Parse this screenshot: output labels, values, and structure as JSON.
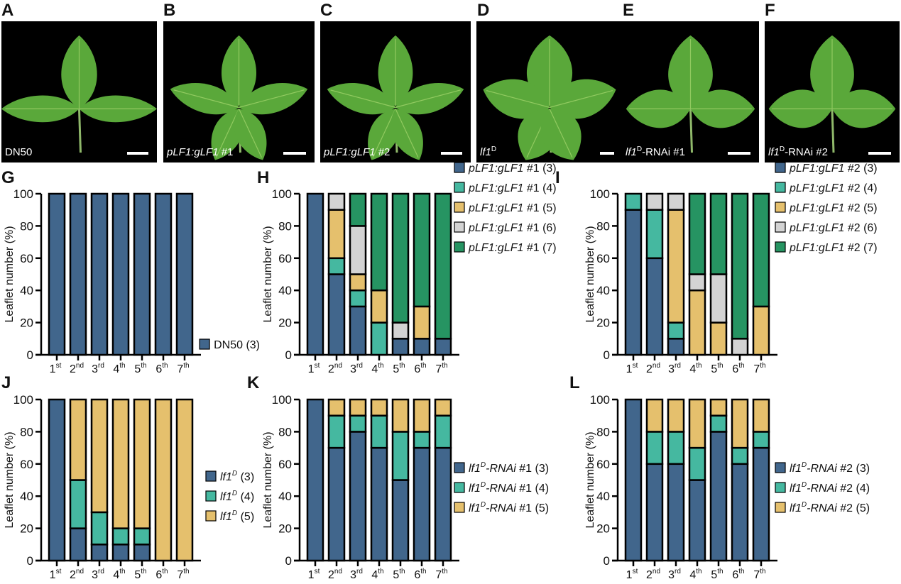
{
  "figure": {
    "photo_panels": [
      {
        "label": "A",
        "caption_main": "DN50",
        "caption_italic": "",
        "caption_sup": "",
        "caption_suffix": "",
        "leaflets": 3
      },
      {
        "label": "B",
        "caption_main": "",
        "caption_italic": "pLF1:gLF1",
        "caption_sup": "",
        "caption_suffix": " #1",
        "leaflets": 5
      },
      {
        "label": "C",
        "caption_main": "",
        "caption_italic": "pLF1:gLF1",
        "caption_sup": "",
        "caption_suffix": " #2",
        "leaflets": 5
      },
      {
        "label": "D",
        "caption_main": "",
        "caption_italic": "lf1",
        "caption_sup": "D",
        "caption_suffix": "",
        "leaflets": 5
      },
      {
        "label": "E",
        "caption_main": "",
        "caption_italic": "lf1",
        "caption_sup": "D",
        "caption_suffix": "-RNAi #1",
        "leaflets": 3
      },
      {
        "label": "F",
        "caption_main": "",
        "caption_italic": "lf1",
        "caption_sup": "D",
        "caption_suffix": "-RNAi #2",
        "leaflets": 3
      }
    ],
    "colors": {
      "leaf": "#5aa83a",
      "leaf_vein": "#9fd36a",
      "photo_bg": "#000000",
      "c3": "#41668c",
      "c4": "#45b8a0",
      "c5": "#e5c06d",
      "c6": "#d3d3d3",
      "c7": "#269462"
    }
  },
  "chart_data": [
    {
      "panel": "G",
      "type": "bar",
      "stacked": true,
      "ylabel": "Leaflet number (%)",
      "xlabel": "",
      "ylim": [
        0,
        100
      ],
      "yticks": [
        "0",
        "20",
        "40",
        "60",
        "80",
        "100"
      ],
      "categories": [
        [
          "1",
          "st"
        ],
        [
          "2",
          "nd"
        ],
        [
          "3",
          "rd"
        ],
        [
          "4",
          "th"
        ],
        [
          "5",
          "th"
        ],
        [
          "6",
          "th"
        ],
        [
          "7",
          "th"
        ]
      ],
      "series": [
        {
          "name": "DN50 (3)",
          "italic": "",
          "sup": "",
          "rest": "DN50 (3)",
          "color": "#41668c",
          "values": [
            100,
            100,
            100,
            100,
            100,
            100,
            100
          ]
        }
      ],
      "legend": "right-bottom"
    },
    {
      "panel": "H",
      "type": "bar",
      "stacked": true,
      "ylabel": "Leaflet number (%)",
      "xlabel": "",
      "ylim": [
        0,
        100
      ],
      "yticks": [
        "0",
        "20",
        "40",
        "60",
        "80",
        "100"
      ],
      "categories": [
        [
          "1",
          "st"
        ],
        [
          "2",
          "nd"
        ],
        [
          "3",
          "rd"
        ],
        [
          "4",
          "th"
        ],
        [
          "5",
          "th"
        ],
        [
          "6",
          "th"
        ],
        [
          "7",
          "th"
        ]
      ],
      "series": [
        {
          "name": "pLF1:gLF1 #1 (3)",
          "italic": "pLF1:gLF1",
          "sup": "",
          "rest": " #1 (3)",
          "color": "#41668c",
          "values": [
            100,
            50,
            30,
            0,
            10,
            10,
            10
          ]
        },
        {
          "name": "pLF1:gLF1 #1 (4)",
          "italic": "pLF1:gLF1",
          "sup": "",
          "rest": " #1 (4)",
          "color": "#45b8a0",
          "values": [
            0,
            10,
            10,
            20,
            0,
            0,
            0
          ]
        },
        {
          "name": "pLF1:gLF1 #1 (5)",
          "italic": "pLF1:gLF1",
          "sup": "",
          "rest": " #1 (5)",
          "color": "#e5c06d",
          "values": [
            0,
            30,
            10,
            20,
            0,
            20,
            0
          ]
        },
        {
          "name": "pLF1:gLF1 #1 (6)",
          "italic": "pLF1:gLF1",
          "sup": "",
          "rest": " #1 (6)",
          "color": "#d3d3d3",
          "values": [
            0,
            10,
            30,
            0,
            10,
            0,
            0
          ]
        },
        {
          "name": "pLF1:gLF1 #1 (7)",
          "italic": "pLF1:gLF1",
          "sup": "",
          "rest": " #1 (7)",
          "color": "#269462",
          "values": [
            0,
            0,
            20,
            60,
            80,
            70,
            90
          ]
        }
      ],
      "legend": "right-bottom"
    },
    {
      "panel": "I",
      "type": "bar",
      "stacked": true,
      "ylabel": "Leaflet number (%)",
      "xlabel": "",
      "ylim": [
        0,
        100
      ],
      "yticks": [
        "0",
        "20",
        "40",
        "60",
        "80",
        "100"
      ],
      "categories": [
        [
          "1",
          "st"
        ],
        [
          "2",
          "nd"
        ],
        [
          "3",
          "rd"
        ],
        [
          "4",
          "th"
        ],
        [
          "5",
          "th"
        ],
        [
          "6",
          "th"
        ],
        [
          "7",
          "th"
        ]
      ],
      "series": [
        {
          "name": "pLF1:gLF1 #2 (3)",
          "italic": "pLF1:gLF1",
          "sup": "",
          "rest": " #2 (3)",
          "color": "#41668c",
          "values": [
            90,
            60,
            10,
            0,
            0,
            0,
            0
          ]
        },
        {
          "name": "pLF1:gLF1 #2 (4)",
          "italic": "pLF1:gLF1",
          "sup": "",
          "rest": " #2 (4)",
          "color": "#45b8a0",
          "values": [
            10,
            30,
            10,
            0,
            0,
            0,
            0
          ]
        },
        {
          "name": "pLF1:gLF1 #2 (5)",
          "italic": "pLF1:gLF1",
          "sup": "",
          "rest": " #2 (5)",
          "color": "#e5c06d",
          "values": [
            0,
            0,
            70,
            40,
            20,
            0,
            30
          ]
        },
        {
          "name": "pLF1:gLF1 #2 (6)",
          "italic": "pLF1:gLF1",
          "sup": "",
          "rest": " #2 (6)",
          "color": "#d3d3d3",
          "values": [
            0,
            10,
            10,
            10,
            30,
            10,
            0
          ]
        },
        {
          "name": "pLF1:gLF1 #2 (7)",
          "italic": "pLF1:gLF1",
          "sup": "",
          "rest": " #2 (7)",
          "color": "#269462",
          "values": [
            0,
            0,
            0,
            50,
            50,
            90,
            70
          ]
        }
      ],
      "legend": "right-bottom"
    },
    {
      "panel": "J",
      "type": "bar",
      "stacked": true,
      "ylabel": "Leaflet number (%)",
      "xlabel": "",
      "ylim": [
        0,
        100
      ],
      "yticks": [
        "0",
        "20",
        "40",
        "60",
        "80",
        "100"
      ],
      "categories": [
        [
          "1",
          "st"
        ],
        [
          "2",
          "nd"
        ],
        [
          "3",
          "rd"
        ],
        [
          "4",
          "th"
        ],
        [
          "5",
          "th"
        ],
        [
          "6",
          "th"
        ],
        [
          "7",
          "th"
        ]
      ],
      "series": [
        {
          "name": "lf1D (3)",
          "italic": "lf1",
          "sup": "D",
          "rest": " (3)",
          "color": "#41668c",
          "values": [
            100,
            20,
            10,
            10,
            10,
            0,
            0
          ]
        },
        {
          "name": "lf1D (4)",
          "italic": "lf1",
          "sup": "D",
          "rest": " (4)",
          "color": "#45b8a0",
          "values": [
            0,
            30,
            20,
            10,
            10,
            0,
            0
          ]
        },
        {
          "name": "lf1D (5)",
          "italic": "lf1",
          "sup": "D",
          "rest": " (5)",
          "color": "#e5c06d",
          "values": [
            0,
            50,
            70,
            80,
            80,
            100,
            100
          ]
        }
      ],
      "legend": "right-bottom"
    },
    {
      "panel": "K",
      "type": "bar",
      "stacked": true,
      "ylabel": "Leaflet number (%)",
      "xlabel": "",
      "ylim": [
        0,
        100
      ],
      "yticks": [
        "0",
        "20",
        "40",
        "60",
        "80",
        "100"
      ],
      "categories": [
        [
          "1",
          "st"
        ],
        [
          "2",
          "nd"
        ],
        [
          "3",
          "rd"
        ],
        [
          "4",
          "th"
        ],
        [
          "5",
          "th"
        ],
        [
          "6",
          "th"
        ],
        [
          "7",
          "th"
        ]
      ],
      "series": [
        {
          "name": "lf1D-RNAi #1 (3)",
          "italic": "lf1",
          "sup": "D",
          "rest2italic": "-RNAi",
          "rest": " #1 (3)",
          "color": "#41668c",
          "values": [
            100,
            70,
            80,
            70,
            50,
            70,
            70
          ]
        },
        {
          "name": "lf1D-RNAi #1 (4)",
          "italic": "lf1",
          "sup": "D",
          "rest2italic": "-RNAi",
          "rest": " #1 (4)",
          "color": "#45b8a0",
          "values": [
            0,
            20,
            10,
            20,
            30,
            10,
            20
          ]
        },
        {
          "name": "lf1D-RNAi #1 (5)",
          "italic": "lf1",
          "sup": "D",
          "rest2italic": "-RNAi",
          "rest": " #1 (5)",
          "color": "#e5c06d",
          "values": [
            0,
            10,
            10,
            10,
            20,
            20,
            10
          ]
        }
      ],
      "legend": "right-bottom"
    },
    {
      "panel": "L",
      "type": "bar",
      "stacked": true,
      "ylabel": "Leaflet number (%)",
      "xlabel": "",
      "ylim": [
        0,
        100
      ],
      "yticks": [
        "0",
        "20",
        "40",
        "60",
        "80",
        "100"
      ],
      "categories": [
        [
          "1",
          "st"
        ],
        [
          "2",
          "nd"
        ],
        [
          "3",
          "rd"
        ],
        [
          "4",
          "th"
        ],
        [
          "5",
          "th"
        ],
        [
          "6",
          "th"
        ],
        [
          "7",
          "th"
        ]
      ],
      "series": [
        {
          "name": "lf1D-RNAi #2 (3)",
          "italic": "lf1",
          "sup": "D",
          "rest2italic": "-RNAi",
          "rest": " #2 (3)",
          "color": "#41668c",
          "values": [
            100,
            60,
            60,
            50,
            80,
            60,
            70
          ]
        },
        {
          "name": "lf1D-RNAi #2 (4)",
          "italic": "lf1",
          "sup": "D",
          "rest2italic": "-RNAi",
          "rest": " #2 (4)",
          "color": "#45b8a0",
          "values": [
            0,
            20,
            20,
            20,
            10,
            10,
            10
          ]
        },
        {
          "name": "lf1D-RNAi #2 (5)",
          "italic": "lf1",
          "sup": "D",
          "rest2italic": "-RNAi",
          "rest": " #2 (5)",
          "color": "#e5c06d",
          "values": [
            0,
            20,
            20,
            30,
            10,
            30,
            20
          ]
        }
      ],
      "legend": "right-bottom"
    }
  ]
}
